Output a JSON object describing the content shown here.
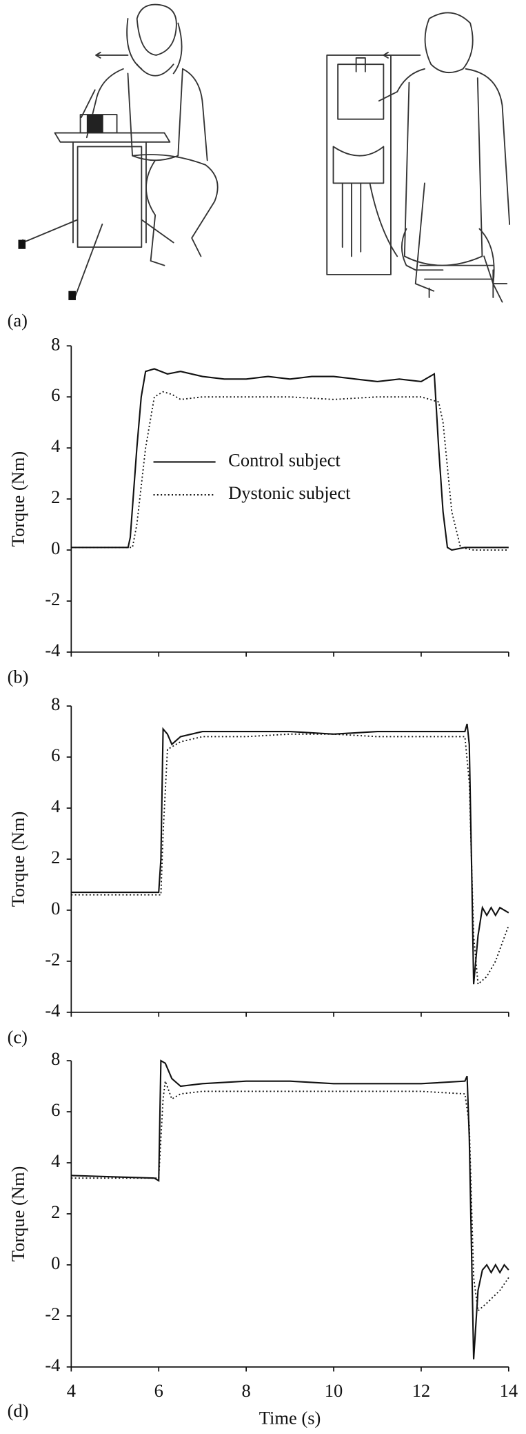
{
  "illustration": {
    "label": "(a)"
  },
  "chart_data": [
    {
      "type": "line",
      "panel_label": "(b)",
      "ylabel": "Torque (Nm)",
      "xlim": [
        4,
        14
      ],
      "xticks": [
        4,
        6,
        8,
        10,
        12,
        14
      ],
      "ylim": [
        -4,
        8
      ],
      "yticks": [
        -4,
        -2,
        0,
        2,
        4,
        6,
        8
      ],
      "series": [
        {
          "name": "Control subject",
          "color": "#111111",
          "dash": "solid",
          "x": [
            4,
            5.3,
            5.35,
            5.5,
            5.6,
            5.7,
            5.9,
            6.2,
            6.5,
            7,
            7.5,
            8,
            8.5,
            9,
            9.5,
            10,
            10.5,
            11,
            11.5,
            12,
            12.3,
            12.4,
            12.5,
            12.6,
            12.7,
            13,
            14
          ],
          "values": [
            0.1,
            0.1,
            0.5,
            4,
            6,
            7.0,
            7.1,
            6.9,
            7.0,
            6.8,
            6.7,
            6.7,
            6.8,
            6.7,
            6.8,
            6.8,
            6.7,
            6.6,
            6.7,
            6.6,
            6.9,
            4,
            1.5,
            0.1,
            0,
            0.1,
            0.1
          ]
        },
        {
          "name": "Dystonic subject",
          "color": "#111111",
          "dash": "dotted",
          "x": [
            4,
            5.4,
            5.5,
            5.7,
            5.9,
            6.1,
            6.3,
            6.5,
            7,
            8,
            9,
            10,
            11,
            12,
            12.4,
            12.5,
            12.7,
            12.9,
            13.2,
            14
          ],
          "values": [
            0.1,
            0.1,
            1,
            4,
            6,
            6.2,
            6.1,
            5.9,
            6.0,
            6.0,
            6.0,
            5.9,
            6.0,
            6.0,
            5.8,
            5,
            1.5,
            0.1,
            0,
            0
          ]
        }
      ]
    },
    {
      "type": "line",
      "panel_label": "(c)",
      "ylabel": "Torque (Nm)",
      "xlim": [
        4,
        14
      ],
      "xticks": [
        4,
        6,
        8,
        10,
        12,
        14
      ],
      "ylim": [
        -4,
        8
      ],
      "yticks": [
        -4,
        -2,
        0,
        2,
        4,
        6,
        8
      ],
      "series": [
        {
          "color": "#111111",
          "dash": "solid",
          "x": [
            4,
            6.0,
            6.05,
            6.1,
            6.2,
            6.3,
            6.5,
            7,
            8,
            9,
            10,
            11,
            12,
            13,
            13.05,
            13.1,
            13.15,
            13.2,
            13.3,
            13.4,
            13.5,
            13.6,
            13.7,
            13.8,
            13.9,
            14
          ],
          "values": [
            0.7,
            0.7,
            2,
            7.1,
            6.9,
            6.5,
            6.8,
            7.0,
            7.0,
            7.0,
            6.9,
            7.0,
            7.0,
            7.0,
            7.3,
            6.5,
            2,
            -2.9,
            -1,
            0.1,
            -0.2,
            0.1,
            -0.2,
            0.1,
            0,
            -0.1
          ]
        },
        {
          "color": "#111111",
          "dash": "dotted",
          "x": [
            4,
            6.05,
            6.1,
            6.2,
            6.5,
            7,
            8,
            9,
            10,
            11,
            12,
            13,
            13.1,
            13.2,
            13.3,
            13.5,
            13.7,
            14
          ],
          "values": [
            0.6,
            0.6,
            3,
            6.3,
            6.6,
            6.8,
            6.8,
            6.9,
            6.9,
            6.8,
            6.8,
            6.8,
            5,
            -1,
            -2.9,
            -2.6,
            -2,
            -0.6
          ]
        }
      ]
    },
    {
      "type": "line",
      "panel_label": "(d)",
      "ylabel": "Torque (Nm)",
      "xlabel": "Time (s)",
      "xlim": [
        4,
        14
      ],
      "xticks": [
        4,
        6,
        8,
        10,
        12,
        14
      ],
      "ylim": [
        -4,
        8
      ],
      "yticks": [
        -4,
        -2,
        0,
        2,
        4,
        6,
        8
      ],
      "series": [
        {
          "color": "#111111",
          "dash": "solid",
          "x": [
            4,
            5.9,
            6.0,
            6.05,
            6.15,
            6.3,
            6.5,
            7,
            8,
            9,
            10,
            11,
            12,
            13,
            13.05,
            13.1,
            13.2,
            13.3,
            13.4,
            13.5,
            13.6,
            13.7,
            13.8,
            13.9,
            14
          ],
          "values": [
            3.5,
            3.4,
            3.3,
            8.0,
            7.9,
            7.3,
            7.0,
            7.1,
            7.2,
            7.2,
            7.1,
            7.1,
            7.1,
            7.2,
            7.4,
            5,
            -3.7,
            -1,
            -0.2,
            0,
            -0.3,
            0,
            -0.3,
            0,
            -0.2
          ]
        },
        {
          "color": "#111111",
          "dash": "dotted",
          "x": [
            4,
            6.0,
            6.1,
            6.15,
            6.3,
            6.5,
            7,
            8,
            9,
            10,
            11,
            12,
            13,
            13.1,
            13.2,
            13.3,
            13.5,
            13.8,
            14
          ],
          "values": [
            3.4,
            3.4,
            6.5,
            7.2,
            6.5,
            6.7,
            6.8,
            6.8,
            6.8,
            6.8,
            6.8,
            6.8,
            6.7,
            5.5,
            -0.5,
            -1.8,
            -1.5,
            -1,
            -0.5
          ]
        }
      ]
    }
  ]
}
